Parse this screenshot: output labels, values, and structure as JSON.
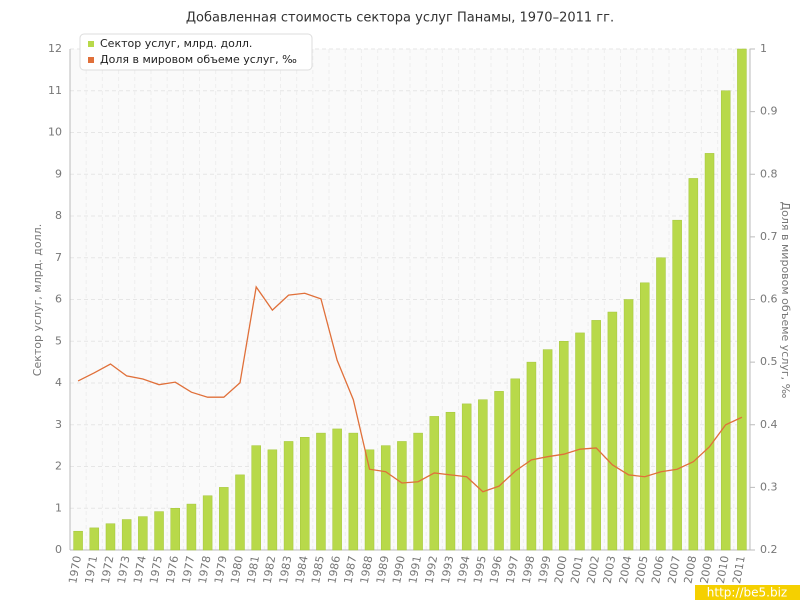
{
  "chart_data": {
    "type": "bar-line",
    "title": "Добавленная стоимость сектора услуг Панамы, 1970–2011 гг.",
    "y_label": "Сектор услуг, млрд. долл.",
    "y2_label": "Доля в мировом объеме услуг, ‰",
    "watermark": "http://be5.biz",
    "categories": [
      "1970",
      "1971",
      "1972",
      "1973",
      "1974",
      "1975",
      "1976",
      "1977",
      "1978",
      "1979",
      "1980",
      "1981",
      "1982",
      "1983",
      "1984",
      "1985",
      "1986",
      "1987",
      "1988",
      "1989",
      "1990",
      "1991",
      "1992",
      "1993",
      "1994",
      "1995",
      "1996",
      "1997",
      "1998",
      "1999",
      "2000",
      "2001",
      "2002",
      "2003",
      "2004",
      "2005",
      "2006",
      "2007",
      "2008",
      "2009",
      "2010",
      "2011"
    ],
    "series": [
      {
        "name": "Сектор услуг, млрд. долл.",
        "color": "#b8d94a",
        "kind": "bar",
        "values": [
          0.45,
          0.53,
          0.63,
          0.73,
          0.8,
          0.92,
          1.0,
          1.1,
          1.3,
          1.5,
          1.8,
          2.5,
          2.4,
          2.6,
          2.7,
          2.8,
          2.9,
          2.8,
          2.4,
          2.5,
          2.6,
          2.8,
          3.2,
          3.3,
          3.5,
          3.6,
          3.8,
          4.1,
          4.5,
          4.8,
          5.0,
          5.2,
          5.5,
          5.7,
          6.0,
          6.4,
          7.0,
          7.9,
          8.9,
          9.5,
          11.0,
          12.0
        ]
      },
      {
        "name": "Доля в мировом объеме услуг, ‰",
        "color": "#e0703a",
        "kind": "line",
        "axis": "y2",
        "values": [
          0.47,
          0.483,
          0.497,
          0.478,
          0.473,
          0.464,
          0.468,
          0.452,
          0.444,
          0.444,
          0.467,
          0.62,
          0.583,
          0.607,
          0.61,
          0.601,
          0.503,
          0.44,
          0.329,
          0.325,
          0.307,
          0.309,
          0.323,
          0.32,
          0.317,
          0.293,
          0.302,
          0.326,
          0.344,
          0.349,
          0.353,
          0.361,
          0.363,
          0.336,
          0.32,
          0.317,
          0.325,
          0.329,
          0.341,
          0.365,
          0.4,
          0.412
        ]
      }
    ],
    "ylim": [
      0,
      12
    ],
    "yticks": [
      0,
      1,
      2,
      3,
      4,
      5,
      6,
      7,
      8,
      9,
      10,
      11,
      12
    ],
    "y2lim": [
      0.2,
      1
    ],
    "y2ticks": [
      0.2,
      0.3,
      0.4,
      0.5,
      0.6,
      0.7,
      0.8,
      0.9,
      1
    ],
    "grid": true,
    "legend": "top-left"
  }
}
